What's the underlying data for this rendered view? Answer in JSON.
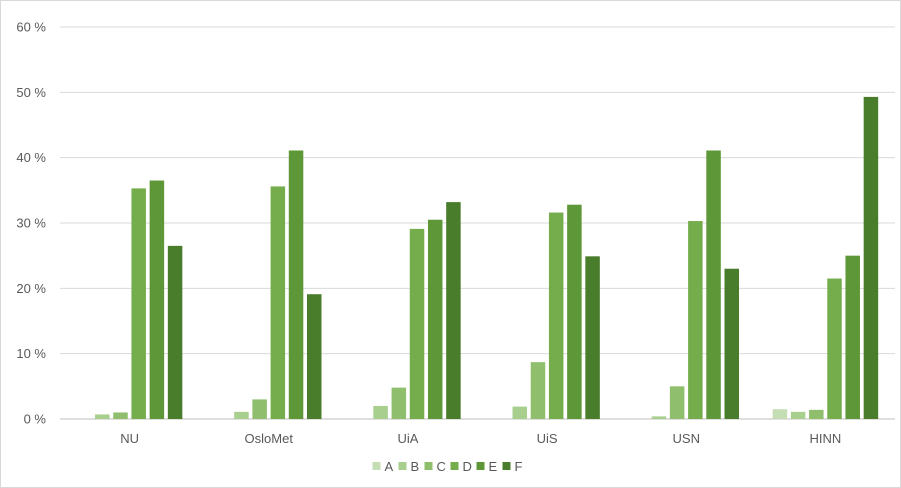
{
  "chart_data": {
    "type": "bar",
    "title": "",
    "xlabel": "",
    "ylabel": "",
    "categories": [
      "NU",
      "OsloMet",
      "UiA",
      "UiS",
      "USN",
      "HINN"
    ],
    "ylim": [
      0,
      60
    ],
    "yticks": [
      0,
      10,
      20,
      30,
      40,
      50,
      60
    ],
    "ytick_labels": [
      "0 %",
      "10 %",
      "20 %",
      "30 %",
      "40 %",
      "50 %",
      "60 %"
    ],
    "grid": true,
    "legend_position": "bottom",
    "series": [
      {
        "name": "A",
        "color": "#c5ddb5",
        "values": [
          0.0,
          0.0,
          0.0,
          0.0,
          0.0,
          1.5
        ]
      },
      {
        "name": "B",
        "color": "#a9cf8f",
        "values": [
          0.7,
          1.1,
          2.0,
          1.9,
          0.4,
          1.1
        ]
      },
      {
        "name": "C",
        "color": "#8fbf6c",
        "values": [
          1.0,
          3.0,
          4.8,
          8.7,
          5.0,
          1.4
        ]
      },
      {
        "name": "D",
        "color": "#75ad4d",
        "values": [
          35.3,
          35.6,
          29.1,
          31.6,
          30.3,
          21.5
        ]
      },
      {
        "name": "E",
        "color": "#5e9738",
        "values": [
          36.5,
          41.1,
          30.5,
          32.8,
          41.1,
          25.0
        ]
      },
      {
        "name": "F",
        "color": "#4a7d2b",
        "values": [
          26.5,
          19.1,
          33.2,
          24.9,
          23.0,
          49.3
        ]
      }
    ]
  }
}
